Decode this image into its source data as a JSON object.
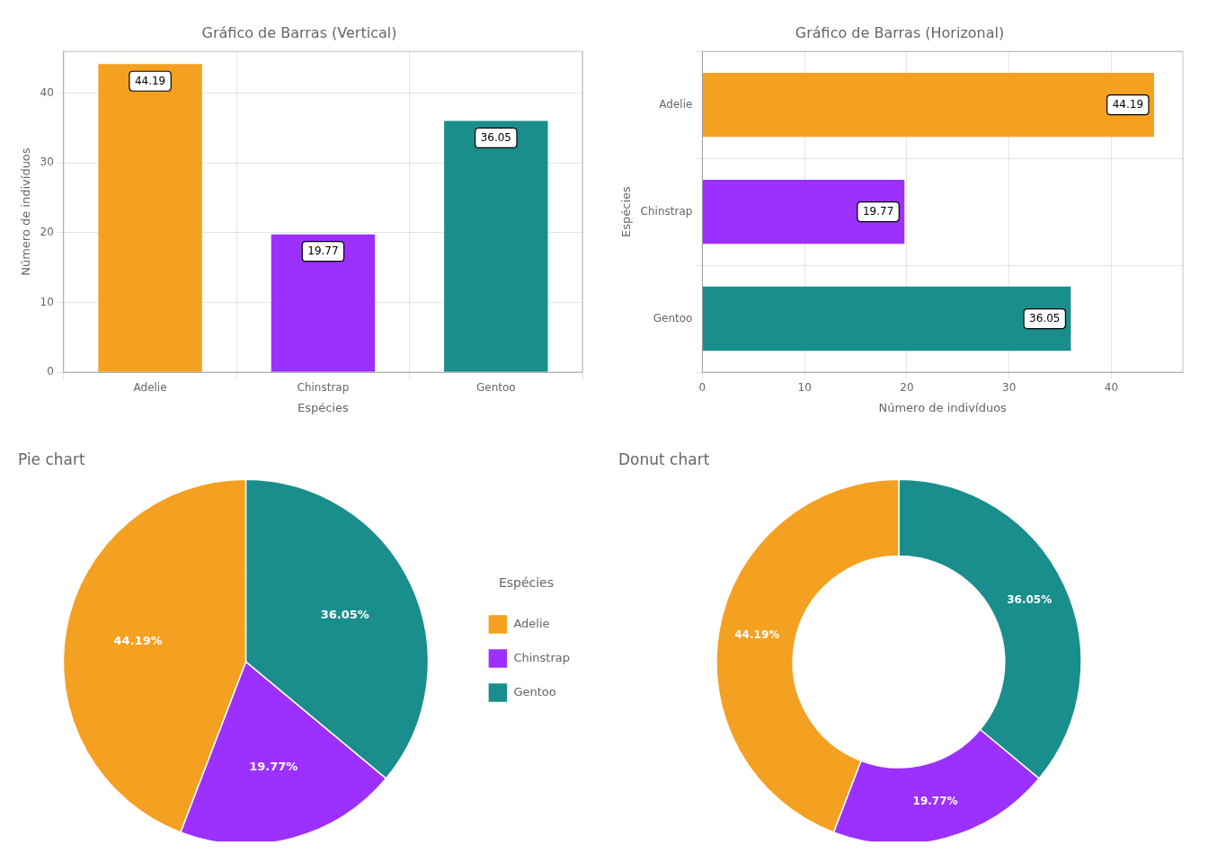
{
  "chart_data": [
    {
      "type": "bar",
      "title": "Gráfico de Barras (Vertical)",
      "xlabel": "Espécies",
      "ylabel": "Número de indivíduos",
      "categories": [
        "Adelie",
        "Chinstrap",
        "Gentoo"
      ],
      "values": [
        44.19,
        19.77,
        36.05
      ],
      "colors": [
        "#F4A020",
        "#9B30FF",
        "#1A8E8C"
      ],
      "ylim": [
        0,
        46
      ],
      "yticks": [
        0,
        10,
        20,
        30,
        40
      ],
      "grid": true,
      "data_labels": true
    },
    {
      "type": "bar",
      "orientation": "horizontal",
      "title": "Gráfico de Barras (Horizonal)",
      "xlabel": "Número de indivíduos",
      "ylabel": "Espécies",
      "categories": [
        "Gentoo",
        "Chinstrap",
        "Adelie"
      ],
      "values": [
        36.05,
        19.77,
        44.19
      ],
      "colors": [
        "#1A8E8C",
        "#9B30FF",
        "#F4A020"
      ],
      "xlim": [
        0,
        47
      ],
      "xticks": [
        0,
        10,
        20,
        30,
        40
      ],
      "grid": true,
      "data_labels": true
    },
    {
      "type": "pie",
      "title": "Pie chart",
      "categories": [
        "Gentoo",
        "Chinstrap",
        "Adelie"
      ],
      "values": [
        36.05,
        19.77,
        44.19
      ],
      "value_labels": [
        "36.05%",
        "19.77%",
        "44.19%"
      ],
      "colors": [
        "#1A8E8C",
        "#9B30FF",
        "#F4A020"
      ],
      "data_labels": true,
      "legend": "right",
      "legend_title": "Espécies"
    },
    {
      "type": "doughnut",
      "title": "Donut chart",
      "categories": [
        "Gentoo",
        "Chinstrap",
        "Adelie"
      ],
      "values": [
        36.05,
        19.77,
        44.19
      ],
      "value_labels": [
        "36.05%",
        "19.77%",
        "44.19%"
      ],
      "colors": [
        "#1A8E8C",
        "#9B30FF",
        "#F4A020"
      ],
      "data_labels": true
    }
  ]
}
